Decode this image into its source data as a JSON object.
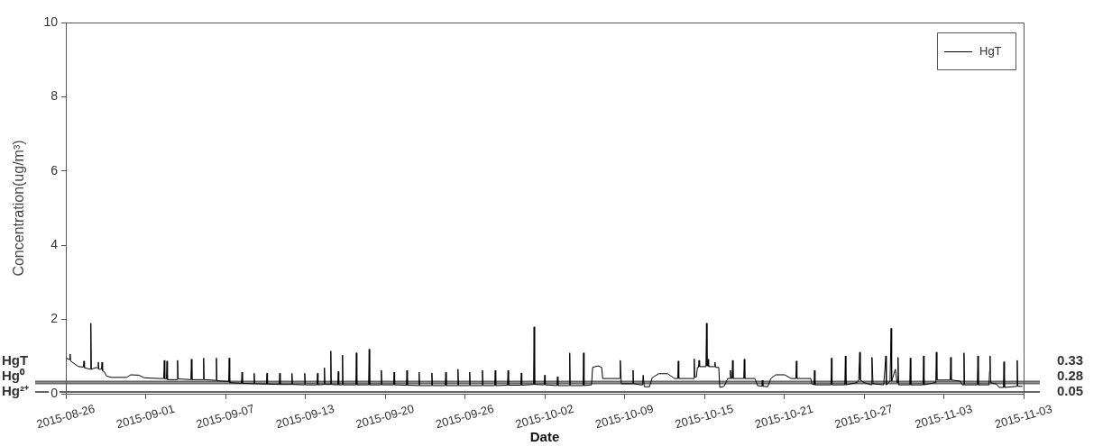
{
  "chart_data": {
    "type": "line",
    "xlabel": "Date",
    "ylabel": "Concentration(ug/m³)",
    "x": [
      "2015-08-26T02:00",
      "2015-08-26T07:00",
      "2015-08-26T08:00",
      "2015-08-26T09:00",
      "2015-08-27T00:00",
      "2015-08-27T09:00",
      "2015-08-27T10:00",
      "2015-08-27T11:00",
      "2015-08-27T22:00",
      "2015-08-27T23:00",
      "2015-08-28T00:00",
      "2015-08-28T10:00",
      "2015-08-28T12:00",
      "2015-08-28T13:00",
      "2015-08-28T14:00",
      "2015-08-28T19:00",
      "2015-08-28T20:00",
      "2015-08-28T21:00",
      "2015-08-29T01:00",
      "2015-08-29T04:00",
      "2015-08-29T13:00",
      "2015-08-30T18:00",
      "2015-08-31T02:00",
      "2015-08-31T17:00",
      "2015-09-01T03:00",
      "2015-09-02T08:00",
      "2015-09-02T16:00",
      "2015-09-02T17:00",
      "2015-09-02T18:00",
      "2015-09-02T21:00",
      "2015-09-02T22:00",
      "2015-09-02T23:00",
      "2015-09-03T17:00",
      "2015-09-03T18:00",
      "2015-09-03T19:00",
      "2015-09-04T19:00",
      "2015-09-04T20:00",
      "2015-09-04T21:00",
      "2015-09-05T18:00",
      "2015-09-05T19:00",
      "2015-09-05T20:00",
      "2015-09-06T18:00",
      "2015-09-06T19:00",
      "2015-09-06T20:00",
      "2015-09-07T18:00",
      "2015-09-07T19:00",
      "2015-09-07T20:00",
      "2015-09-08T18:00",
      "2015-09-08T19:00",
      "2015-09-08T20:00",
      "2015-09-09T17:00",
      "2015-09-09T18:00",
      "2015-09-09T19:00",
      "2015-09-10T17:00",
      "2015-09-10T18:00",
      "2015-09-10T19:00",
      "2015-09-11T17:00",
      "2015-09-11T18:00",
      "2015-09-11T19:00",
      "2015-09-12T16:00",
      "2015-09-12T17:00",
      "2015-09-12T18:00",
      "2015-09-13T16:00",
      "2015-09-13T17:00",
      "2015-09-13T18:00",
      "2015-09-14T16:00",
      "2015-09-14T17:00",
      "2015-09-14T18:00",
      "2015-09-15T05:00",
      "2015-09-15T06:00",
      "2015-09-15T07:00",
      "2015-09-15T17:00",
      "2015-09-15T18:00",
      "2015-09-15T19:00",
      "2015-09-16T07:00",
      "2015-09-16T08:00",
      "2015-09-16T09:00",
      "2015-09-16T15:00",
      "2015-09-16T16:00",
      "2015-09-16T17:00",
      "2015-09-17T17:00",
      "2015-09-17T18:00",
      "2015-09-17T19:00",
      "2015-09-18T17:00",
      "2015-09-18T18:00",
      "2015-09-18T19:00",
      "2015-09-19T16:00",
      "2015-09-19T17:00",
      "2015-09-19T18:00",
      "2015-09-20T16:00",
      "2015-09-20T17:00",
      "2015-09-20T18:00",
      "2015-09-21T16:00",
      "2015-09-21T17:00",
      "2015-09-21T18:00",
      "2015-09-22T15:00",
      "2015-09-22T16:00",
      "2015-09-22T17:00",
      "2015-09-23T15:00",
      "2015-09-23T16:00",
      "2015-09-23T17:00",
      "2015-09-24T17:00",
      "2015-09-24T18:00",
      "2015-09-24T19:00",
      "2015-09-25T16:00",
      "2015-09-25T17:00",
      "2015-09-25T18:00",
      "2015-09-26T14:00",
      "2015-09-26T15:00",
      "2015-09-26T16:00",
      "2015-09-27T14:00",
      "2015-09-27T15:00",
      "2015-09-27T16:00",
      "2015-09-28T14:00",
      "2015-09-28T15:00",
      "2015-09-28T16:00",
      "2015-09-29T14:00",
      "2015-09-29T15:00",
      "2015-09-29T16:00",
      "2015-09-30T15:00",
      "2015-09-30T16:00",
      "2015-09-30T17:00",
      "2015-10-01T15:00",
      "2015-10-01T16:00",
      "2015-10-01T17:00",
      "2015-10-02T11:00",
      "2015-10-02T12:00",
      "2015-10-02T13:00",
      "2015-10-03T11:00",
      "2015-10-03T12:00",
      "2015-10-03T13:00",
      "2015-10-04T10:00",
      "2015-10-04T11:00",
      "2015-10-04T12:00",
      "2015-10-05T12:00",
      "2015-10-05T13:00",
      "2015-10-05T14:00",
      "2015-10-06T04:00",
      "2015-10-06T06:00",
      "2015-10-06T16:00",
      "2015-10-06T23:00",
      "2015-10-07T01:00",
      "2015-10-08T09:00",
      "2015-10-08T10:00",
      "2015-10-08T12:00",
      "2015-10-09T09:00",
      "2015-10-09T10:00",
      "2015-10-09T11:00",
      "2015-10-10T00:00",
      "2015-10-10T04:00",
      "2015-10-10T05:00",
      "2015-10-10T07:00",
      "2015-10-10T17:00",
      "2015-10-10T22:00",
      "2015-10-11T10:00",
      "2015-10-12T03:00",
      "2015-10-12T16:00",
      "2015-10-12T22:00",
      "2015-10-12T23:00",
      "2015-10-13T00:00",
      "2015-10-14T04:00",
      "2015-10-14T05:00",
      "2015-10-14T06:00",
      "2015-10-14T09:00",
      "2015-10-14T11:00",
      "2015-10-14T13:00",
      "2015-10-14T14:00",
      "2015-10-14T15:00",
      "2015-10-15T03:00",
      "2015-10-15T04:00",
      "2015-10-15T05:00",
      "2015-10-15T06:00",
      "2015-10-15T07:00",
      "2015-10-15T08:00",
      "2015-10-15T19:00",
      "2015-10-15T20:00",
      "2015-10-15T21:00",
      "2015-10-16T03:00",
      "2015-10-16T05:00",
      "2015-10-16T13:00",
      "2015-10-16T20:00",
      "2015-10-17T00:00",
      "2015-10-17T01:00",
      "2015-10-17T02:00",
      "2015-10-17T04:00",
      "2015-10-17T05:00",
      "2015-10-17T06:00",
      "2015-10-18T02:00",
      "2015-10-18T03:00",
      "2015-10-18T04:00",
      "2015-10-18T23:00",
      "2015-10-19T04:00",
      "2015-10-19T12:00",
      "2015-10-19T13:00",
      "2015-10-19T14:00",
      "2015-10-19T23:00",
      "2015-10-20T05:00",
      "2015-10-20T14:00",
      "2015-10-21T07:00",
      "2015-10-21T19:00",
      "2015-10-22T04:00",
      "2015-10-22T05:00",
      "2015-10-22T06:00",
      "2015-10-23T08:00",
      "2015-10-23T10:00",
      "2015-10-23T14:00",
      "2015-10-23T15:00",
      "2015-10-23T16:00",
      "2015-10-24T22:00",
      "2015-10-24T23:00",
      "2015-10-25T00:00",
      "2015-10-26T00:00",
      "2015-10-26T01:00",
      "2015-10-26T02:00",
      "2015-10-26T23:00",
      "2015-10-27T02:00",
      "2015-10-27T04:00",
      "2015-10-27T05:00",
      "2015-10-27T12:00",
      "2015-10-28T02:00",
      "2015-10-28T03:00",
      "2015-10-28T05:00",
      "2015-10-29T01:00",
      "2015-10-29T03:00",
      "2015-10-29T05:00",
      "2015-10-29T06:00",
      "2015-10-29T13:00",
      "2015-10-29T15:00",
      "2015-10-29T16:00",
      "2015-10-29T23:00",
      "2015-10-30T02:00",
      "2015-10-30T03:00",
      "2015-10-30T04:00",
      "2015-10-30T05:00",
      "2015-10-31T02:00",
      "2015-10-31T03:00",
      "2015-10-31T04:00",
      "2015-11-01T03:00",
      "2015-11-01T04:00",
      "2015-11-01T05:00",
      "2015-11-02T02:00",
      "2015-11-02T03:00",
      "2015-11-02T04:00",
      "2015-11-02T05:00",
      "2015-11-03T06:00",
      "2015-11-03T07:00",
      "2015-11-03T08:00",
      "2015-11-04T01:00",
      "2015-11-04T05:00",
      "2015-11-04T07:00",
      "2015-11-04T08:00",
      "2015-11-04T09:00",
      "2015-11-05T09:00",
      "2015-11-05T10:00",
      "2015-11-05T11:00",
      "2015-11-06T07:00",
      "2015-11-06T08:00",
      "2015-11-06T09:00",
      "2015-11-06T10:00",
      "2015-11-06T21:00",
      "2015-11-07T02:00",
      "2015-11-07T10:00",
      "2015-11-07T11:00",
      "2015-11-07T12:00",
      "2015-11-08T11:00",
      "2015-11-08T12:00",
      "2015-11-08T13:00",
      "2015-11-08T21:00"
    ],
    "series": [
      {
        "name": "HgT",
        "color": "#000000",
        "values": [
          0.95,
          0.92,
          1.07,
          0.88,
          0.73,
          0.72,
          0.88,
          0.7,
          0.66,
          1.9,
          0.66,
          0.71,
          0.68,
          0.85,
          0.66,
          0.66,
          0.85,
          0.62,
          0.58,
          0.48,
          0.44,
          0.44,
          0.51,
          0.5,
          0.43,
          0.41,
          0.41,
          0.9,
          0.4,
          0.4,
          0.88,
          0.38,
          0.38,
          0.9,
          0.4,
          0.38,
          0.93,
          0.38,
          0.38,
          0.96,
          0.38,
          0.36,
          0.96,
          0.35,
          0.33,
          0.96,
          0.3,
          0.28,
          0.58,
          0.28,
          0.27,
          0.55,
          0.27,
          0.26,
          0.55,
          0.26,
          0.25,
          0.55,
          0.25,
          0.25,
          0.55,
          0.25,
          0.24,
          0.55,
          0.24,
          0.24,
          0.55,
          0.24,
          0.25,
          0.7,
          0.25,
          0.25,
          1.15,
          0.25,
          0.24,
          0.6,
          0.24,
          0.24,
          1.04,
          0.24,
          0.24,
          1.1,
          0.24,
          0.24,
          1.2,
          0.24,
          0.24,
          0.63,
          0.24,
          0.24,
          0.58,
          0.24,
          0.23,
          0.63,
          0.23,
          0.22,
          0.58,
          0.22,
          0.22,
          0.56,
          0.22,
          0.22,
          0.58,
          0.22,
          0.22,
          0.66,
          0.22,
          0.22,
          0.58,
          0.22,
          0.22,
          0.63,
          0.22,
          0.22,
          0.63,
          0.22,
          0.23,
          0.63,
          0.23,
          0.23,
          0.56,
          0.23,
          0.25,
          1.8,
          0.25,
          0.24,
          0.5,
          0.24,
          0.22,
          0.46,
          0.22,
          0.22,
          1.1,
          0.22,
          0.22,
          1.1,
          0.22,
          0.24,
          0.71,
          0.75,
          0.71,
          0.41,
          0.41,
          0.9,
          0.27,
          0.27,
          0.63,
          0.27,
          0.24,
          0.24,
          0.5,
          0.19,
          0.19,
          0.43,
          0.54,
          0.54,
          0.41,
          0.41,
          0.88,
          0.41,
          0.41,
          0.94,
          0.45,
          0.45,
          0.71,
          0.71,
          0.9,
          0.73,
          0.73,
          1.9,
          0.75,
          0.75,
          0.93,
          0.73,
          0.73,
          0.85,
          0.71,
          0.71,
          0.17,
          0.2,
          0.41,
          0.41,
          0.63,
          0.41,
          0.41,
          0.9,
          0.41,
          0.41,
          0.93,
          0.41,
          0.41,
          0.22,
          0.2,
          0.36,
          0.2,
          0.19,
          0.41,
          0.51,
          0.51,
          0.41,
          0.41,
          0.88,
          0.41,
          0.41,
          0.27,
          0.24,
          0.63,
          0.24,
          0.24,
          0.96,
          0.24,
          0.24,
          1.02,
          0.24,
          0.3,
          0.37,
          1.12,
          0.37,
          0.3,
          0.24,
          0.98,
          0.27,
          0.24,
          0.6,
          1.02,
          0.24,
          0.34,
          1.76,
          0.34,
          0.66,
          0.3,
          0.3,
          0.98,
          0.24,
          0.24,
          0.96,
          0.24,
          0.24,
          1.02,
          0.24,
          0.3,
          0.37,
          1.12,
          0.37,
          0.37,
          0.98,
          0.37,
          0.34,
          0.24,
          0.24,
          1.1,
          0.24,
          0.24,
          1.02,
          0.24,
          0.24,
          0.6,
          1.02,
          0.3,
          0.26,
          0.17,
          0.17,
          0.86,
          0.17,
          0.2,
          0.9,
          0.2,
          0.2
        ]
      }
    ],
    "xlim": [
      "2015-08-26T00:00",
      "2015-11-09T00:00"
    ],
    "xticks": [
      {
        "value": "2015-08-26T00:00",
        "label": "2015-08-26"
      },
      {
        "value": "2015-09-01T06:00",
        "label": "2015-09-01"
      },
      {
        "value": "2015-09-07T12:00",
        "label": "2015-09-07"
      },
      {
        "value": "2015-09-13T18:00",
        "label": "2015-09-13"
      },
      {
        "value": "2015-09-20T00:00",
        "label": "2015-09-20"
      },
      {
        "value": "2015-09-26T06:00",
        "label": "2015-09-26"
      },
      {
        "value": "2015-10-02T12:00",
        "label": "2015-10-02"
      },
      {
        "value": "2015-10-08T18:00",
        "label": "2015-10-09"
      },
      {
        "value": "2015-10-15T00:00",
        "label": "2015-10-15"
      },
      {
        "value": "2015-10-21T06:00",
        "label": "2015-10-21"
      },
      {
        "value": "2015-10-27T12:00",
        "label": "2015-10-27"
      },
      {
        "value": "2015-11-02T18:00",
        "label": "2015-11-03"
      },
      {
        "value": "2015-11-09T00:00",
        "label": "2015-11-03"
      }
    ],
    "ylim": [
      0,
      10
    ],
    "yticks": [
      0,
      2,
      4,
      6,
      8,
      10
    ],
    "ref_lines": [
      {
        "axis": "y",
        "value": 0.33,
        "label": "HgT",
        "color": "#666666"
      },
      {
        "axis": "y",
        "value": 0.28,
        "label": "Hg⁰",
        "color": "#666666"
      },
      {
        "axis": "y",
        "value": 0.05,
        "label": "Hg²⁺",
        "color": "#666666"
      }
    ],
    "annotations": [
      "0.33",
      "0.28",
      "0.05"
    ],
    "legend": "top right",
    "grid": false,
    "marker": "none",
    "line_style": "solid"
  }
}
